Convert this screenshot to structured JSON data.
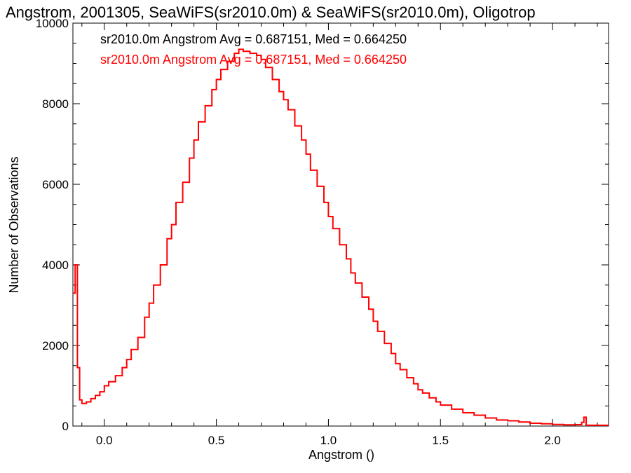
{
  "chart_data": {
    "type": "line",
    "step": true,
    "title": "Angstrom, 2001305, SeaWiFS(sr2010.0m) & SeaWiFS(sr2010.0m), Oligotrop",
    "xlabel": "Angstrom ()",
    "ylabel": "Number of Observations",
    "xlim": [
      -0.14,
      2.25
    ],
    "ylim": [
      0,
      10000
    ],
    "xticks": [
      0.0,
      0.5,
      1.0,
      1.5,
      2.0
    ],
    "xtick_labels": [
      "0.0",
      "0.5",
      "1.0",
      "1.5",
      "2.0"
    ],
    "yticks": [
      0,
      2000,
      4000,
      6000,
      8000,
      10000
    ],
    "ytick_labels": [
      "0",
      "2000",
      "4000",
      "6000",
      "8000",
      "10000"
    ],
    "grid": false,
    "annotations": [
      {
        "text": "sr2010.0m Angstrom Avg = 0.687151, Med = 0.664250",
        "color": "#000000"
      },
      {
        "text": "sr2010.0m Angstrom Avg = 0.687151, Med = 0.664250",
        "color": "#ff0000"
      }
    ],
    "series": [
      {
        "color": "#ff0000",
        "x": [
          -0.14,
          -0.13,
          -0.12,
          -0.11,
          -0.1,
          -0.08,
          -0.06,
          -0.04,
          -0.02,
          0.0,
          0.02,
          0.05,
          0.08,
          0.1,
          0.12,
          0.15,
          0.18,
          0.2,
          0.22,
          0.25,
          0.28,
          0.3,
          0.32,
          0.35,
          0.38,
          0.4,
          0.42,
          0.45,
          0.48,
          0.5,
          0.52,
          0.55,
          0.58,
          0.6,
          0.62,
          0.65,
          0.68,
          0.7,
          0.72,
          0.75,
          0.78,
          0.8,
          0.82,
          0.85,
          0.88,
          0.9,
          0.92,
          0.95,
          0.98,
          1.0,
          1.02,
          1.05,
          1.08,
          1.1,
          1.12,
          1.15,
          1.18,
          1.2,
          1.22,
          1.25,
          1.28,
          1.3,
          1.32,
          1.35,
          1.38,
          1.4,
          1.42,
          1.45,
          1.48,
          1.5,
          1.55,
          1.6,
          1.65,
          1.7,
          1.75,
          1.8,
          1.85,
          1.9,
          1.95,
          2.0,
          2.05,
          2.1,
          2.13,
          2.14,
          2.15,
          2.25
        ],
        "y": [
          3300,
          4000,
          1450,
          650,
          560,
          600,
          680,
          760,
          850,
          1000,
          1100,
          1250,
          1450,
          1650,
          1900,
          2200,
          2700,
          3050,
          3500,
          4000,
          4650,
          5000,
          5550,
          6050,
          6650,
          7100,
          7550,
          7950,
          8350,
          8600,
          8850,
          9050,
          9250,
          9350,
          9300,
          9250,
          9200,
          9100,
          8900,
          8600,
          8300,
          8100,
          7850,
          7450,
          7100,
          6750,
          6350,
          5950,
          5550,
          5200,
          4900,
          4500,
          4150,
          3800,
          3550,
          3200,
          2900,
          2600,
          2350,
          2050,
          1800,
          1550,
          1400,
          1200,
          1050,
          900,
          820,
          700,
          600,
          520,
          420,
          330,
          270,
          200,
          150,
          130,
          100,
          70,
          55,
          40,
          30,
          35,
          90,
          220,
          20,
          20
        ]
      }
    ]
  }
}
